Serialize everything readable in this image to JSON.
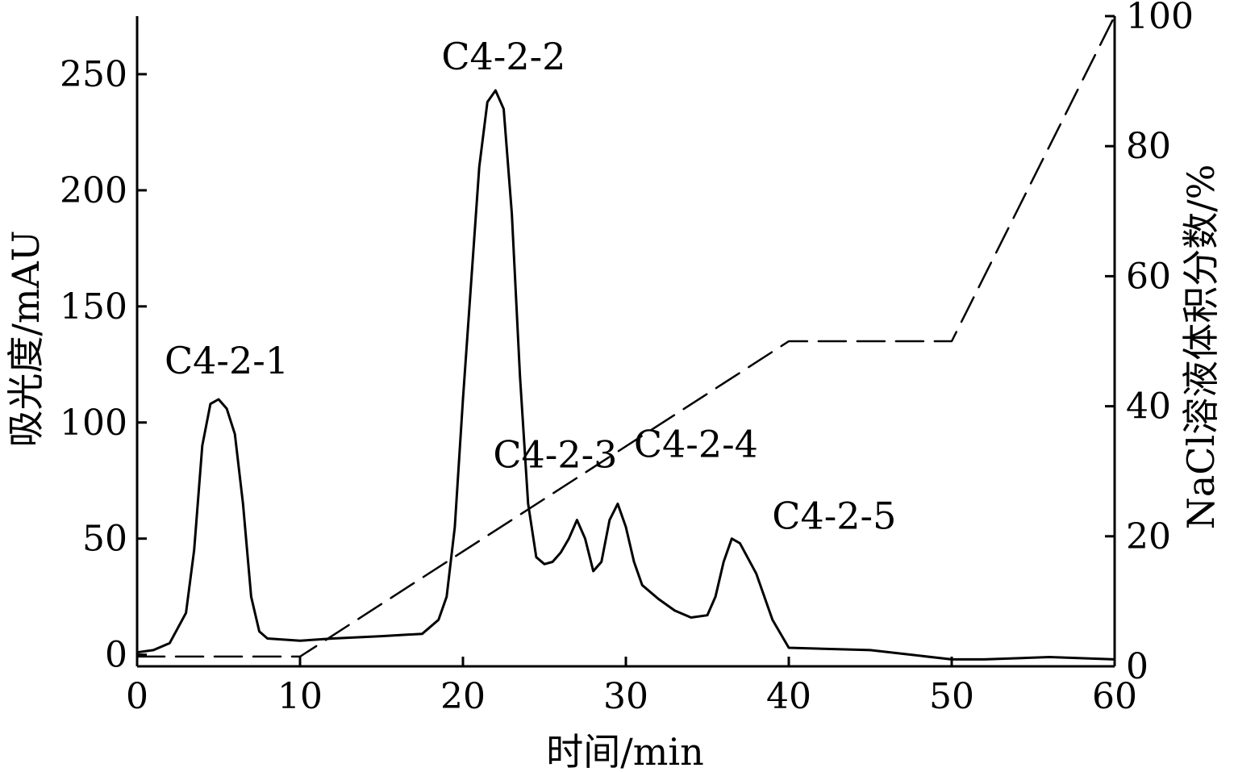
{
  "chart_data": {
    "type": "line",
    "title": "",
    "xlabel": "时间/min",
    "ylabel": "吸光度/mAU",
    "y2label": "NaCl溶液体积分数/%",
    "xlim": [
      0,
      60
    ],
    "ylim": [
      -5,
      275
    ],
    "y2lim": [
      0,
      100
    ],
    "x_ticks": [
      0,
      10,
      20,
      30,
      40,
      50,
      60
    ],
    "y_ticks": [
      0,
      50,
      100,
      150,
      200,
      250
    ],
    "y2_ticks": [
      0,
      20,
      40,
      60,
      80,
      100
    ],
    "grid": false,
    "legend": "none",
    "series": [
      {
        "axis": "left",
        "style": "solid",
        "color": "#000000",
        "x": [
          0,
          1,
          2,
          3,
          3.5,
          4,
          4.5,
          5,
          5.5,
          6,
          6.5,
          7,
          7.5,
          8,
          10,
          12,
          15,
          17.5,
          18.5,
          19,
          19.5,
          20,
          20.5,
          21,
          21.5,
          22,
          22.5,
          23,
          23.5,
          24,
          24.5,
          25,
          25.5,
          26,
          26.5,
          27,
          27.5,
          28,
          28.5,
          29,
          29.5,
          30,
          30.5,
          31,
          32,
          33,
          34,
          35,
          35.5,
          36,
          36.5,
          37,
          38,
          39,
          40,
          45,
          50,
          52,
          56,
          60
        ],
        "y": [
          1,
          2,
          5,
          18,
          45,
          90,
          108,
          110,
          106,
          95,
          65,
          25,
          10,
          7,
          6,
          7,
          8,
          9,
          15,
          25,
          55,
          110,
          160,
          210,
          238,
          243,
          235,
          190,
          120,
          65,
          42,
          39,
          40,
          44,
          50,
          58,
          50,
          36,
          40,
          58,
          65,
          55,
          40,
          30,
          24,
          19,
          16,
          17,
          25,
          40,
          50,
          48,
          35,
          15,
          3,
          2,
          -2,
          -2,
          -1,
          -2
        ]
      },
      {
        "axis": "right",
        "style": "dashed",
        "color": "#000000",
        "x": [
          0,
          10,
          40,
          50,
          60
        ],
        "y": [
          1.5,
          1.5,
          50,
          50,
          100
        ]
      }
    ],
    "annotations": [
      {
        "text": "C4-2-1",
        "x": 5,
        "y": 110
      },
      {
        "text": "C4-2-2",
        "x": 22,
        "y": 243
      },
      {
        "text": "C4-2-3",
        "x": 27,
        "y": 58
      },
      {
        "text": "C4-2-4",
        "x": 29.5,
        "y": 65
      },
      {
        "text": "C4-2-5",
        "x": 36.5,
        "y": 50
      }
    ]
  }
}
